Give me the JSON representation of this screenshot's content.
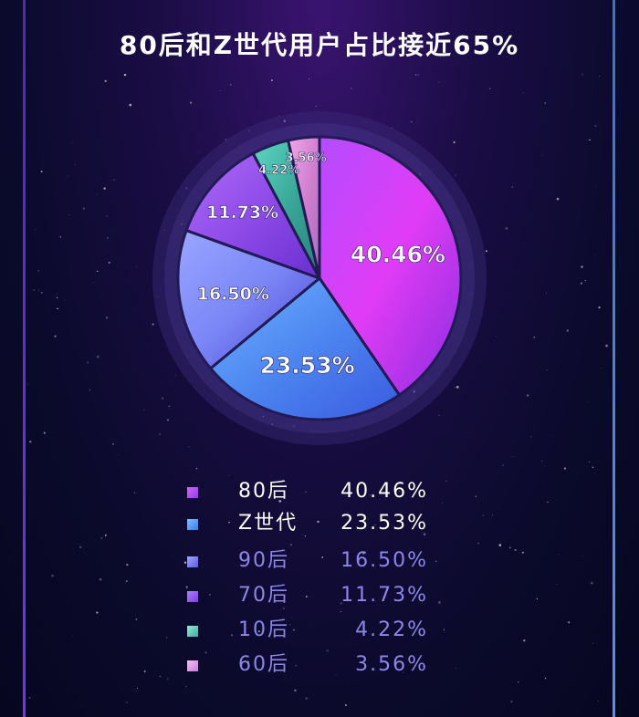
{
  "title": "80后和Z世代用户占比接近65%",
  "chart_data": {
    "type": "pie",
    "categories": [
      "80后",
      "Z世代",
      "90后",
      "70后",
      "10后",
      "60后"
    ],
    "values": [
      40.46,
      23.53,
      16.5,
      11.73,
      4.22,
      3.56
    ],
    "labels": [
      "40.46%",
      "23.53%",
      "16.50%",
      "11.73%",
      "4.22%",
      "3.56%"
    ],
    "title": "80后和Z世代用户占比接近65%",
    "start": "12 o'clock",
    "direction": "clockwise",
    "legend_position": "bottom",
    "colors": [
      [
        "#b44cff",
        "#e03cf5",
        "#8a2de0"
      ],
      [
        "#6fb3ff",
        "#4d86f0",
        "#3a5ae0"
      ],
      [
        "#9aa6ff",
        "#7a86f5",
        "#4b3fd0"
      ],
      [
        "#b06cf7",
        "#8e4be8",
        "#6a2fd0"
      ],
      [
        "#5fd6c0",
        "#39a89a",
        "#2a8078"
      ],
      [
        "#f0a9e6",
        "#d27fd0",
        "#a86bc0"
      ]
    ]
  },
  "legend": {
    "items": [
      {
        "name": "80后",
        "value": "40.46%",
        "text_color": "#ffffff",
        "swatch": [
          "#c46cff",
          "#9b36e8"
        ]
      },
      {
        "name": "Z世代",
        "value": "23.53%",
        "text_color": "#ffffff",
        "swatch": [
          "#7fc0ff",
          "#3f7ae8"
        ]
      },
      {
        "name": "90后",
        "value": "16.50%",
        "text_color": "#8c86e8",
        "swatch": [
          "#9ea8ff",
          "#5a5ae0"
        ]
      },
      {
        "name": "70后",
        "value": "11.73%",
        "text_color": "#8c86e8",
        "swatch": [
          "#b27dff",
          "#7a40e0"
        ]
      },
      {
        "name": "10后",
        "value": "4.22%",
        "text_color": "#8c86e8",
        "swatch": [
          "#8ff0c8",
          "#40a8b0"
        ]
      },
      {
        "name": "60后",
        "value": "3.56%",
        "text_color": "#8c86e8",
        "swatch": [
          "#f6c0f0",
          "#c27fd8"
        ]
      }
    ]
  }
}
